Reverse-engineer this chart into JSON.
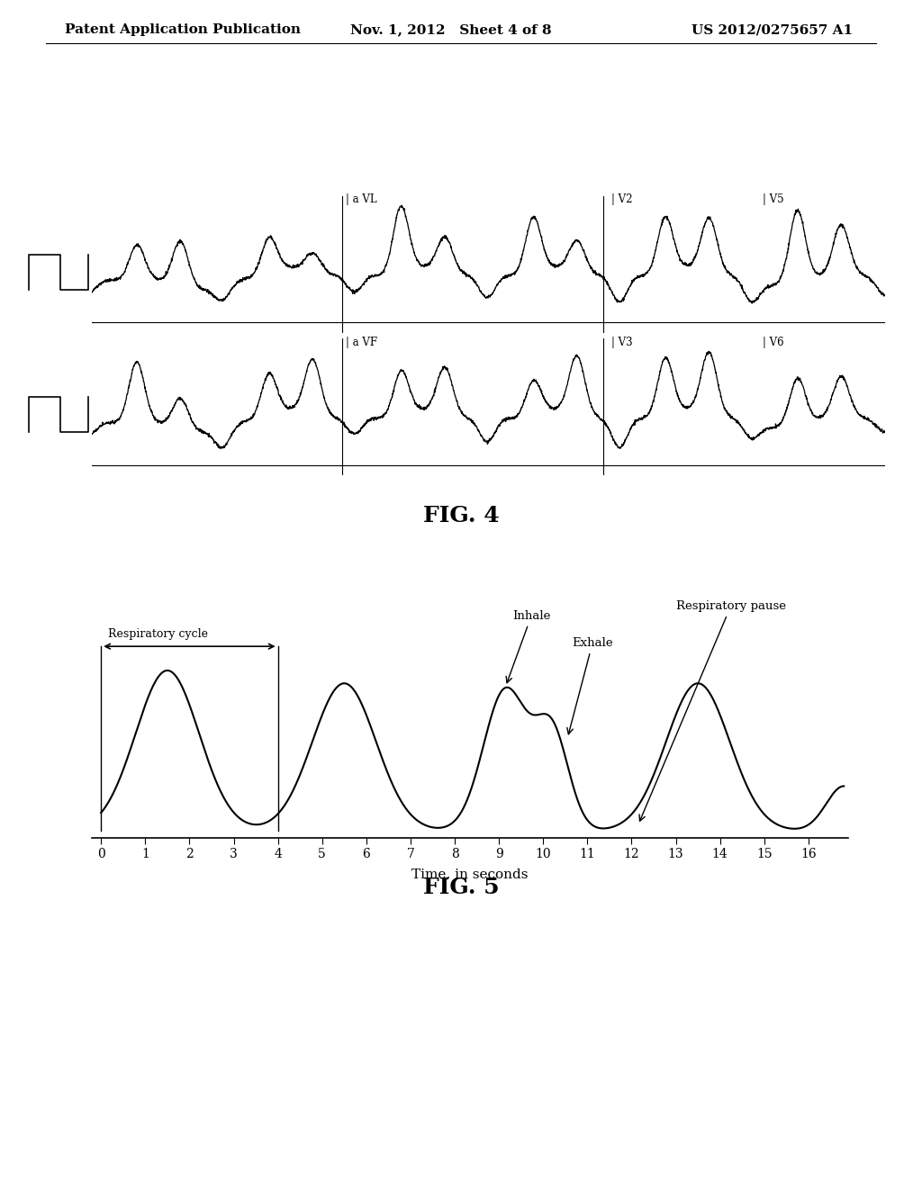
{
  "header_left": "Patent Application Publication",
  "header_center": "Nov. 1, 2012   Sheet 4 of 8",
  "header_right": "US 2012/0275657 A1",
  "fig4_label": "FIG. 4",
  "fig5_label": "FIG. 5",
  "fig4_row1_labels": [
    "| a VL",
    "| V2",
    "| V5"
  ],
  "fig4_row2_labels": [
    "| a VF",
    "| V3",
    "| V6"
  ],
  "fig5_xlabel": "Time, in seconds",
  "background_color": "#ffffff",
  "line_color": "#000000",
  "header_fontsize": 11,
  "fig_label_fontsize": 18
}
